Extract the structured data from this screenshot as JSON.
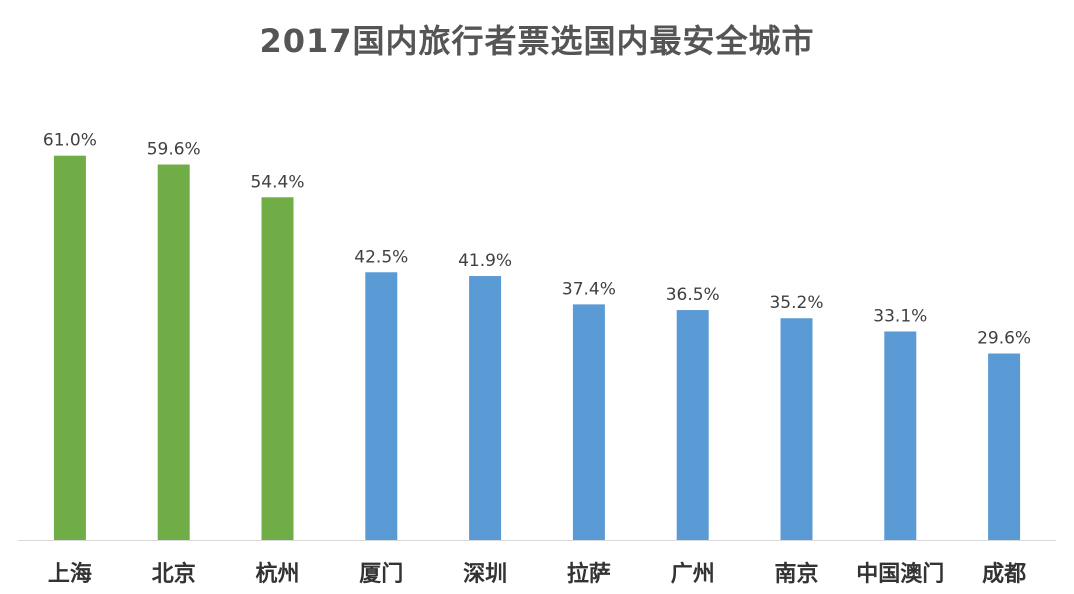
{
  "chart_data": {
    "type": "bar",
    "title": "2017国内旅行者票选国内最安全城市",
    "categories": [
      "上海",
      "北京",
      "杭州",
      "厦门",
      "深圳",
      "拉萨",
      "广州",
      "南京",
      "中国澳门",
      "成都"
    ],
    "values": [
      61.0,
      59.6,
      54.4,
      42.5,
      41.9,
      37.4,
      36.5,
      35.2,
      33.1,
      29.6
    ],
    "value_labels": [
      "61.0%",
      "59.6%",
      "54.4%",
      "42.5%",
      "41.9%",
      "37.4%",
      "36.5%",
      "35.2%",
      "33.1%",
      "29.6%"
    ],
    "bar_colors": [
      "#70ad47",
      "#70ad47",
      "#70ad47",
      "#5b9bd5",
      "#5b9bd5",
      "#5b9bd5",
      "#5b9bd5",
      "#5b9bd5",
      "#5b9bd5",
      "#5b9bd5"
    ],
    "xlabel": "",
    "ylabel": "",
    "ylim": [
      0,
      65
    ],
    "grid": false,
    "axis_color": "#d9d9d9"
  }
}
